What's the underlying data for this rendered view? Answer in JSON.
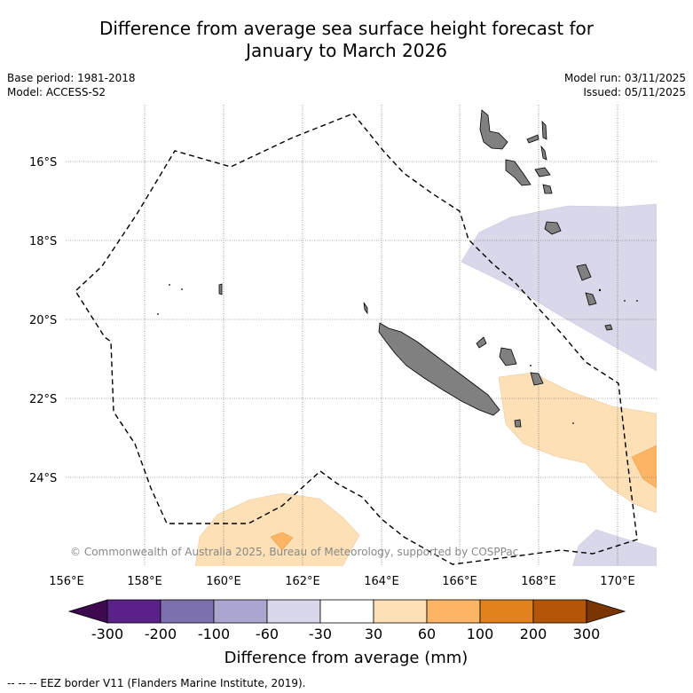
{
  "title_line1": "Difference from average sea surface height forecast for",
  "title_line2": "January to March 2026",
  "base_period": "Base period: 1981-2018",
  "model": "Model: ACCESS-S2",
  "model_run": "Model run: 03/11/2025",
  "issued": "Issued: 05/11/2025",
  "copyright": "© Commonwealth of Australia 2025, Bureau of Meteorology, supported by COSPPac",
  "lat_labels": [
    "16°S",
    "18°S",
    "20°S",
    "22°S",
    "24°S"
  ],
  "lon_labels": [
    "156°E",
    "158°E",
    "160°E",
    "162°E",
    "164°E",
    "166°E",
    "168°E",
    "170°E"
  ],
  "colorbar": {
    "title": "Difference from average (mm)",
    "tick_labels": [
      "-300",
      "-200",
      "-100",
      "-60",
      "-30",
      "30",
      "60",
      "100",
      "200",
      "300"
    ],
    "colors": [
      "#3d0a4f",
      "#5a2189",
      "#7e6fae",
      "#aba6d0",
      "#d8d8ea",
      "#ffffff",
      "#fde0b6",
      "#fbb564",
      "#e2821c",
      "#b45608",
      "#7b3503"
    ]
  },
  "footnote": "--  --  -- EEZ border V11 (Flanders Marine Institute, 2019)."
}
